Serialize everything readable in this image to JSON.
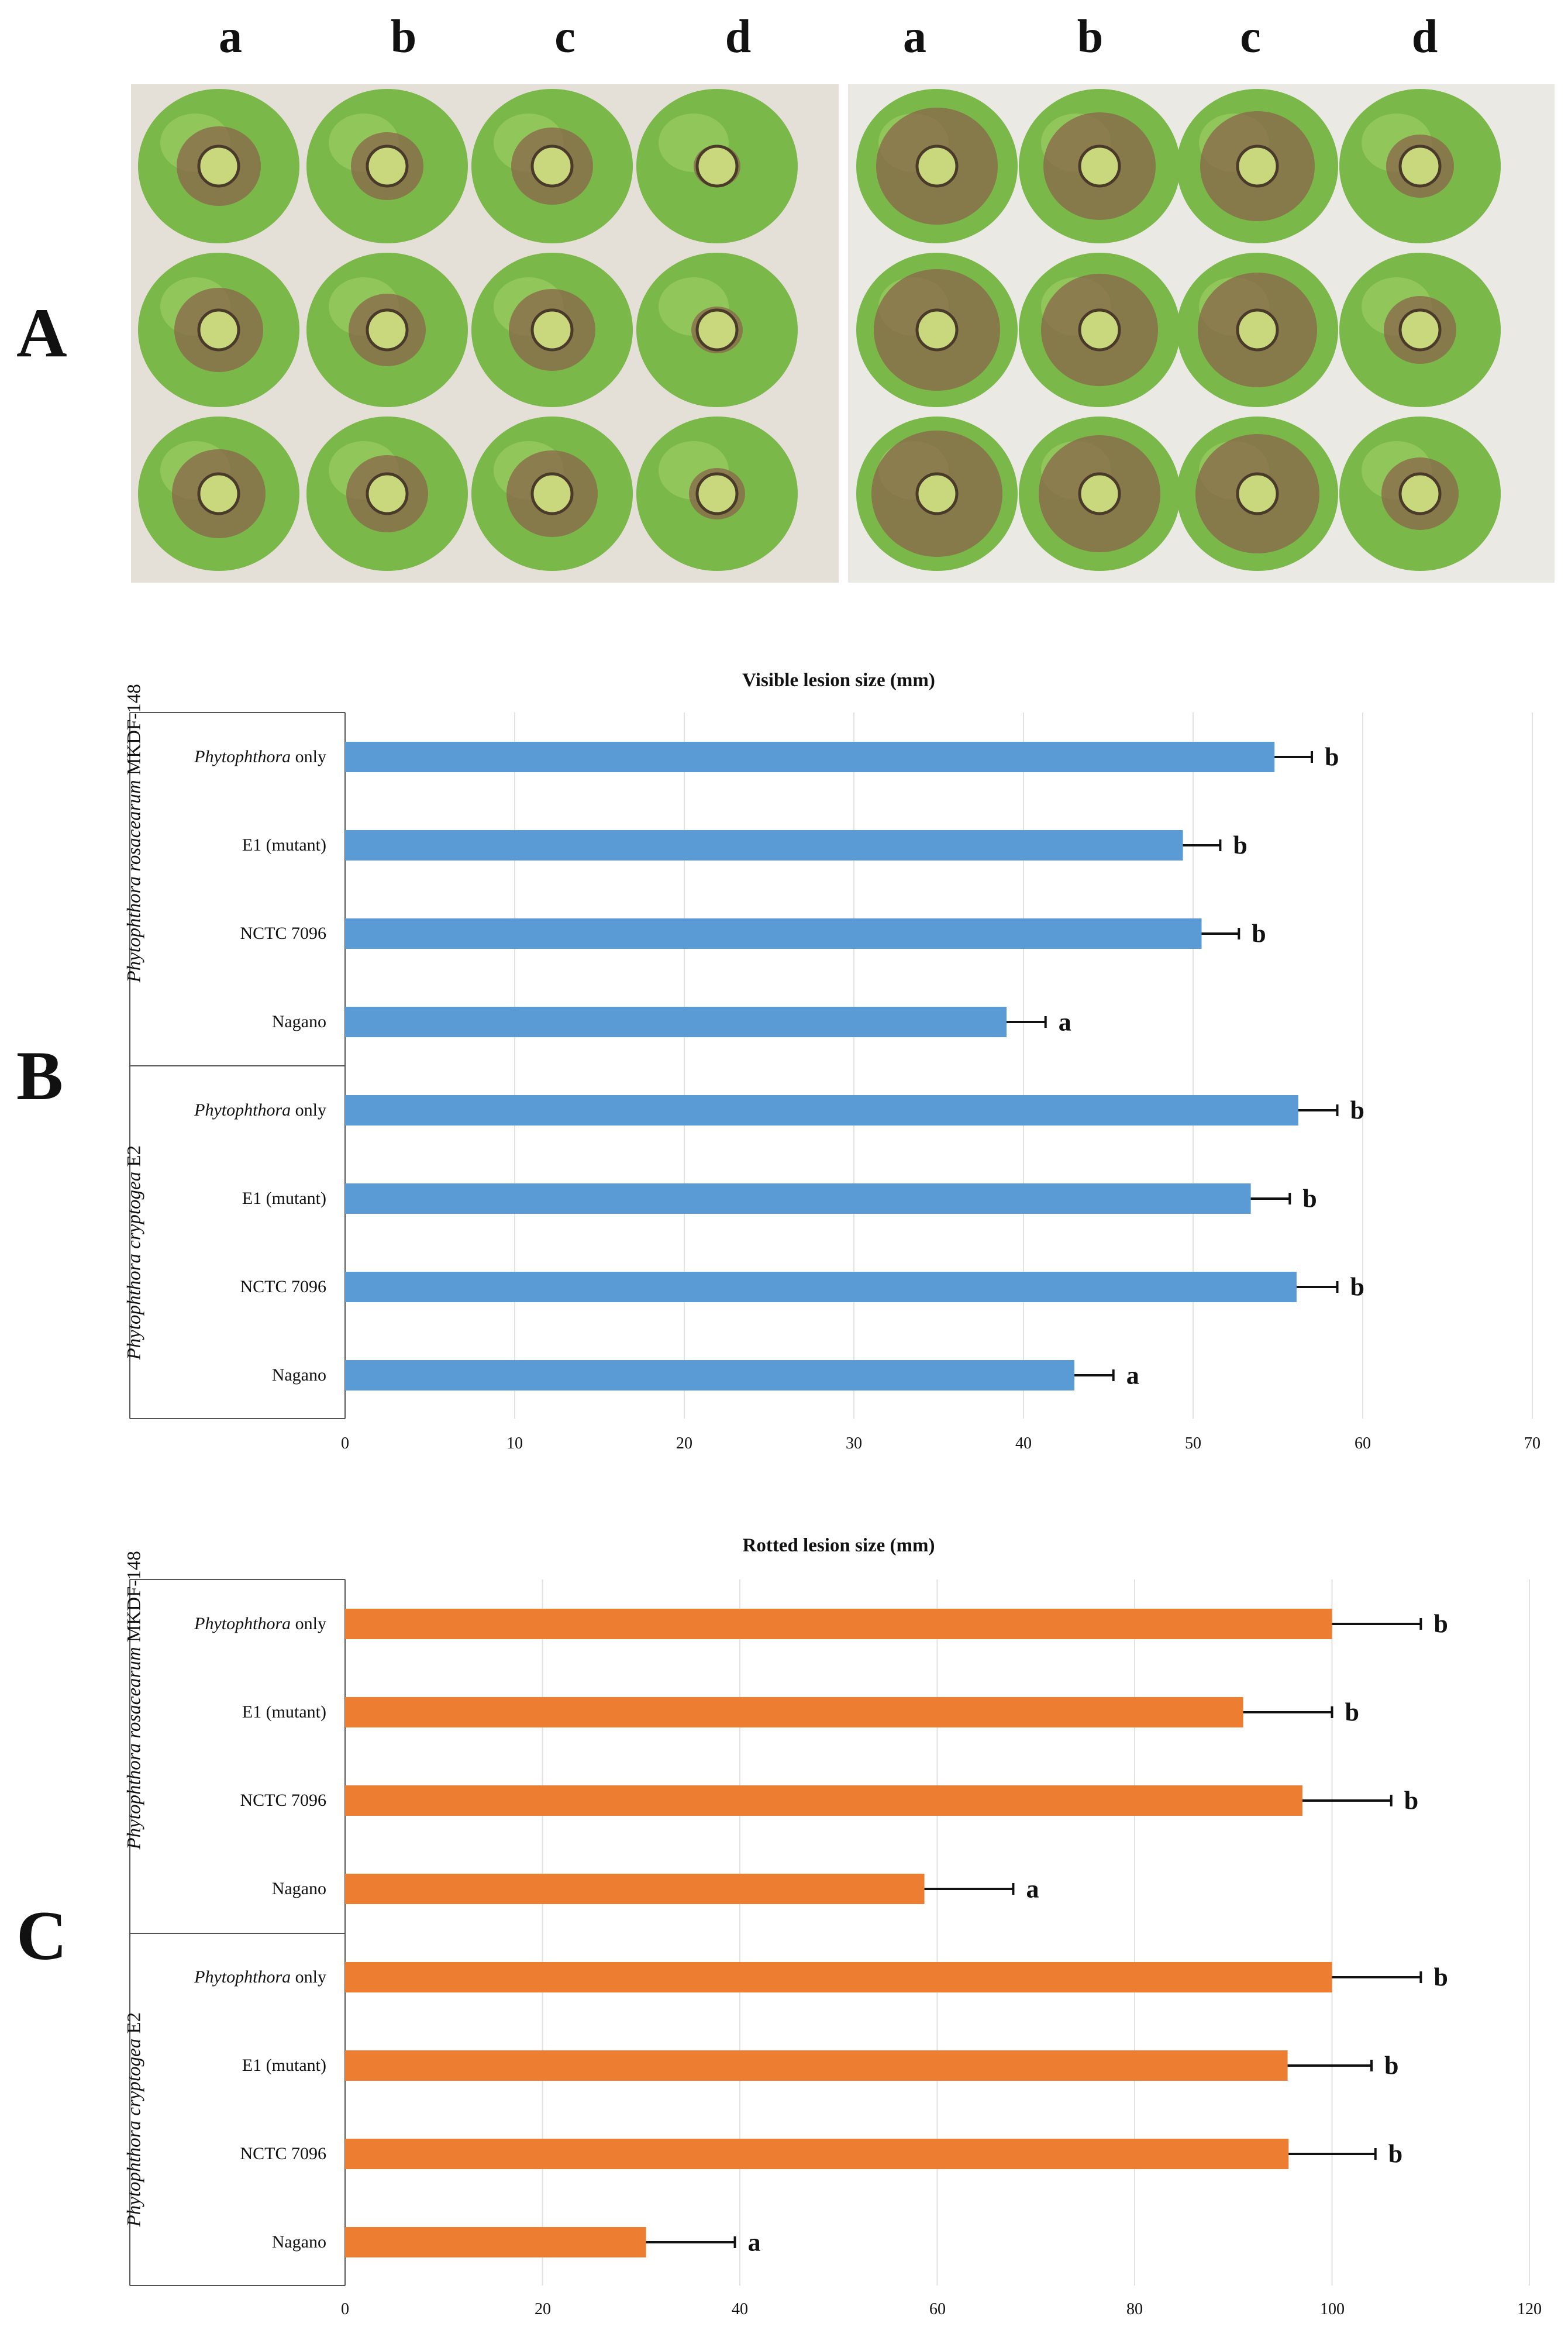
{
  "panels": {
    "A": "A",
    "B": "B",
    "C": "C"
  },
  "photo_columns": [
    "a",
    "b",
    "c",
    "d"
  ],
  "categories": [
    {
      "italic": "Phytophthora",
      "text": " only"
    },
    {
      "italic": "",
      "text": "E1 (mutant)"
    },
    {
      "italic": "",
      "text": "NCTC 7096"
    },
    {
      "italic": "",
      "text": "Nagano"
    },
    {
      "italic": "Phytophthora",
      "text": " only"
    },
    {
      "italic": "",
      "text": "E1 (mutant)"
    },
    {
      "italic": "",
      "text": "NCTC 7096"
    },
    {
      "italic": "",
      "text": "Nagano"
    }
  ],
  "groups": [
    {
      "italic": "Phytophthora rosacearum",
      "text": " MKDF-148"
    },
    {
      "italic": "Phytophthora cryptogea",
      "text": " E2"
    }
  ],
  "colors": {
    "visible_bar": "#5b9bd5",
    "rotted_bar": "#ed7d31",
    "apple_green": "#7bb84a",
    "lesion_brown": "#8a6a4a"
  },
  "chart_data": [
    {
      "type": "bar",
      "orientation": "horizontal",
      "title": "Visible lesion size (mm)",
      "xlim": [
        0,
        70
      ],
      "ticks": [
        0,
        10,
        20,
        30,
        40,
        50,
        60,
        70
      ],
      "grid": true,
      "values": [
        54.8,
        49.4,
        50.5,
        39.0,
        56.2,
        53.4,
        56.1,
        43.0
      ],
      "errors": [
        2.2,
        2.2,
        2.2,
        2.3,
        2.3,
        2.3,
        2.4,
        2.3
      ],
      "significance": [
        "b",
        "b",
        "b",
        "a",
        "b",
        "b",
        "b",
        "a"
      ]
    },
    {
      "type": "bar",
      "orientation": "horizontal",
      "title": "Rotted lesion size (mm)",
      "xlim": [
        0,
        120
      ],
      "ticks": [
        0,
        20,
        40,
        60,
        80,
        100,
        120
      ],
      "grid": true,
      "values": [
        100,
        91,
        97,
        58.7,
        100,
        95.5,
        95.6,
        30.5
      ],
      "errors": [
        9,
        9,
        9,
        9,
        9,
        8.5,
        8.8,
        9
      ],
      "significance": [
        "b",
        "b",
        "b",
        "a",
        "b",
        "b",
        "b",
        "a"
      ]
    }
  ]
}
